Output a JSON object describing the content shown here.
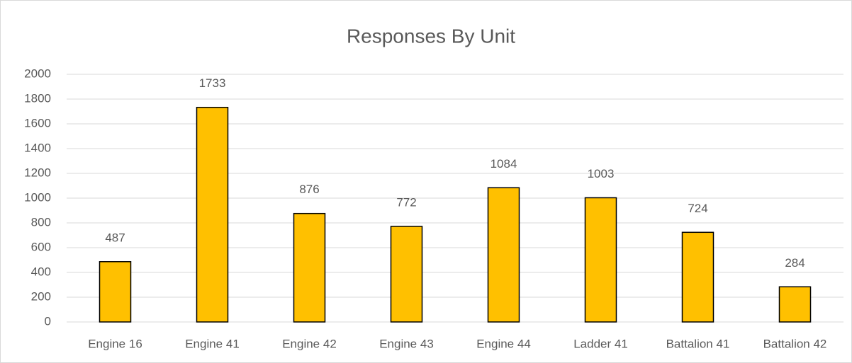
{
  "chart_data": {
    "type": "bar",
    "title": "Responses By Unit",
    "categories": [
      "Engine 16",
      "Engine 41",
      "Engine 42",
      "Engine 43",
      "Engine 44",
      "Ladder 41",
      "Battalion 41",
      "Battalion 42"
    ],
    "values": [
      487,
      1733,
      876,
      772,
      1084,
      1003,
      724,
      284
    ],
    "color": "#ffc000",
    "ylim": [
      0,
      2000
    ],
    "yticks": [
      0,
      200,
      400,
      600,
      800,
      1000,
      1200,
      1400,
      1600,
      1800,
      2000
    ],
    "grid": true
  }
}
